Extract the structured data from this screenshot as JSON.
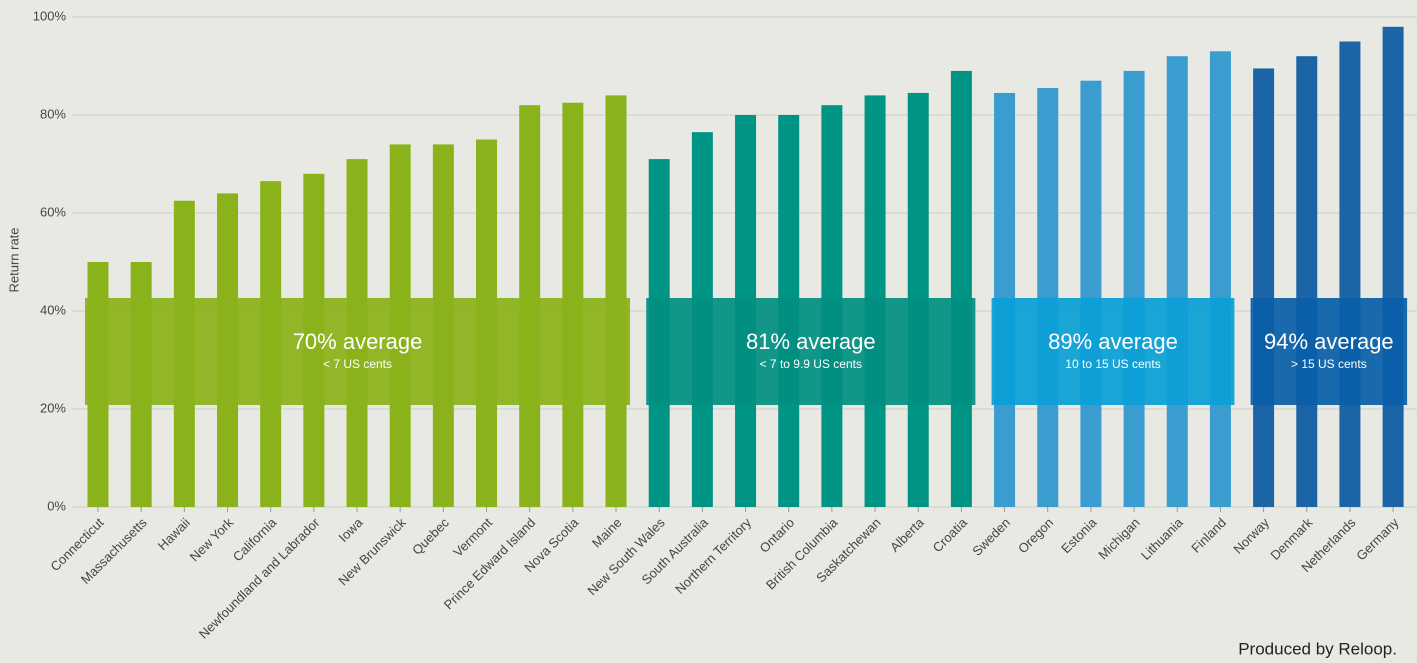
{
  "chart_data": {
    "type": "bar",
    "y_label": "Return rate",
    "footer": "Produced by Reloop.",
    "ylim": [
      0,
      100
    ],
    "yticks": [
      {
        "value": 0,
        "label": "0%"
      },
      {
        "value": 20,
        "label": "20%"
      },
      {
        "value": 40,
        "label": "40%"
      },
      {
        "value": 60,
        "label": "60%"
      },
      {
        "value": 80,
        "label": "80%"
      },
      {
        "value": 100,
        "label": "100%"
      }
    ],
    "grid": true,
    "series": [
      {
        "name": "70% average",
        "subtitle": "< 7 US cents",
        "color": "#8ab31b",
        "box_color": "#8ab31b",
        "categories": [
          "Connecticut",
          "Massachusetts",
          "Hawaii",
          "New York",
          "California",
          "Newfoundland and Labrador",
          "Iowa",
          "New Brunswick",
          "Quebec",
          "Vermont",
          "Prince Edward Island",
          "Nova Scotia",
          "Maine"
        ],
        "values": [
          50,
          50,
          62.5,
          64,
          66.5,
          68,
          71,
          74,
          74,
          75,
          82,
          82.5,
          84
        ]
      },
      {
        "name": "81% average",
        "subtitle": "< 7 to 9.9 US cents",
        "color": "#009484",
        "box_color": "#008f80",
        "categories": [
          "New South Wales",
          "South Australia",
          "Northern Territory",
          "Ontario",
          "British Columbia",
          "Saskatchewan",
          "Alberta",
          "Croatia"
        ],
        "values": [
          71,
          76.5,
          80,
          80,
          82,
          84,
          84.5,
          89
        ]
      },
      {
        "name": "89% average",
        "subtitle": "10 to 15 US cents",
        "color": "#3a9ccf",
        "box_color": "#0a9fd6",
        "categories": [
          "Sweden",
          "Oregon",
          "Estonia",
          "Michigan",
          "Lithuania",
          "Finland"
        ],
        "values": [
          84.5,
          85.5,
          87,
          89,
          92,
          93
        ]
      },
      {
        "name": "94% average",
        "subtitle": "> 15 US cents",
        "color": "#1b64a6",
        "box_color": "#0a5fa8",
        "categories": [
          "Norway",
          "Denmark",
          "Netherlands",
          "Germany"
        ],
        "values": [
          89.5,
          92,
          95,
          98
        ]
      }
    ]
  }
}
